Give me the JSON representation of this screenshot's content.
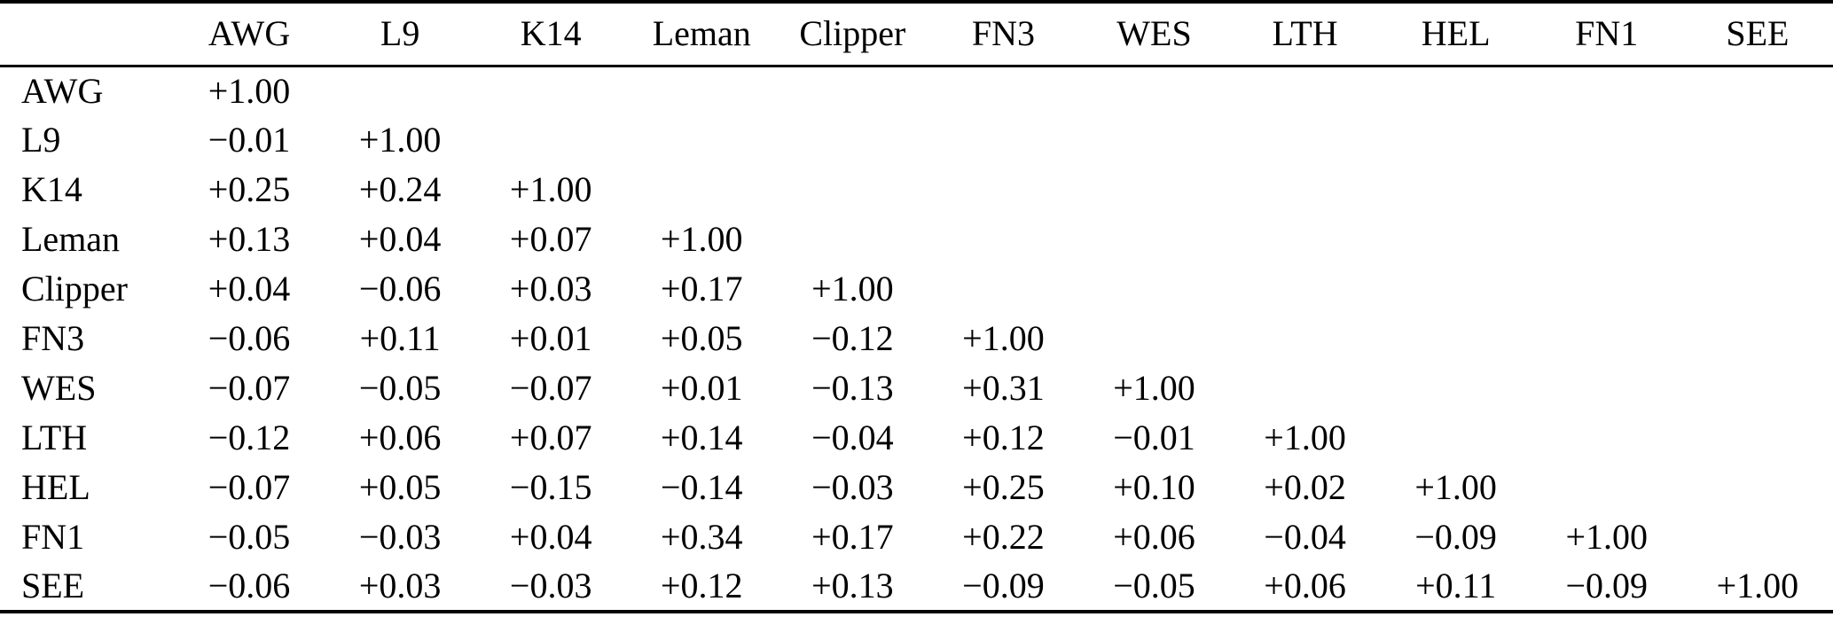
{
  "table": {
    "kind": "correlation-matrix",
    "columns": [
      "",
      "AWG",
      "L9",
      "K14",
      "Leman",
      "Clipper",
      "FN3",
      "WES",
      "LTH",
      "HEL",
      "FN1",
      "SEE"
    ],
    "rows": [
      {
        "label": "AWG",
        "values": [
          "+1.00"
        ]
      },
      {
        "label": "L9",
        "values": [
          "−0.01",
          "+1.00"
        ]
      },
      {
        "label": "K14",
        "values": [
          "+0.25",
          "+0.24",
          "+1.00"
        ]
      },
      {
        "label": "Leman",
        "values": [
          "+0.13",
          "+0.04",
          "+0.07",
          "+1.00"
        ]
      },
      {
        "label": "Clipper",
        "values": [
          "+0.04",
          "−0.06",
          "+0.03",
          "+0.17",
          "+1.00"
        ]
      },
      {
        "label": "FN3",
        "values": [
          "−0.06",
          "+0.11",
          "+0.01",
          "+0.05",
          "−0.12",
          "+1.00"
        ]
      },
      {
        "label": "WES",
        "values": [
          "−0.07",
          "−0.05",
          "−0.07",
          "+0.01",
          "−0.13",
          "+0.31",
          "+1.00"
        ]
      },
      {
        "label": "LTH",
        "values": [
          "−0.12",
          "+0.06",
          "+0.07",
          "+0.14",
          "−0.04",
          "+0.12",
          "−0.01",
          "+1.00"
        ]
      },
      {
        "label": "HEL",
        "values": [
          "−0.07",
          "+0.05",
          "−0.15",
          "−0.14",
          "−0.03",
          "+0.25",
          "+0.10",
          "+0.02",
          "+1.00"
        ]
      },
      {
        "label": "FN1",
        "values": [
          "−0.05",
          "−0.03",
          "+0.04",
          "+0.34",
          "+0.17",
          "+0.22",
          "+0.06",
          "−0.04",
          "−0.09",
          "+1.00"
        ]
      },
      {
        "label": "SEE",
        "values": [
          "−0.06",
          "+0.03",
          "−0.03",
          "+0.12",
          "+0.13",
          "−0.09",
          "−0.05",
          "+0.06",
          "+0.11",
          "−0.09",
          "+1.00"
        ]
      }
    ]
  },
  "chart_data": {
    "type": "table",
    "title": "Correlation matrix (lower triangular)",
    "variables": [
      "AWG",
      "L9",
      "K14",
      "Leman",
      "Clipper",
      "FN3",
      "WES",
      "LTH",
      "HEL",
      "FN1",
      "SEE"
    ],
    "matrix_lower_triangular": [
      [
        1.0
      ],
      [
        -0.01,
        1.0
      ],
      [
        0.25,
        0.24,
        1.0
      ],
      [
        0.13,
        0.04,
        0.07,
        1.0
      ],
      [
        0.04,
        -0.06,
        0.03,
        0.17,
        1.0
      ],
      [
        -0.06,
        0.11,
        0.01,
        0.05,
        -0.12,
        1.0
      ],
      [
        -0.07,
        -0.05,
        -0.07,
        0.01,
        -0.13,
        0.31,
        1.0
      ],
      [
        -0.12,
        0.06,
        0.07,
        0.14,
        -0.04,
        0.12,
        -0.01,
        1.0
      ],
      [
        -0.07,
        0.05,
        -0.15,
        -0.14,
        -0.03,
        0.25,
        0.1,
        0.02,
        1.0
      ],
      [
        -0.05,
        -0.03,
        0.04,
        0.34,
        0.17,
        0.22,
        0.06,
        -0.04,
        -0.09,
        1.0
      ],
      [
        -0.06,
        0.03,
        -0.03,
        0.12,
        0.13,
        -0.09,
        -0.05,
        0.06,
        0.11,
        -0.09,
        1.0
      ]
    ]
  },
  "colors": {
    "background": "#ffffff",
    "text": "#000000",
    "rule": "#000000"
  }
}
